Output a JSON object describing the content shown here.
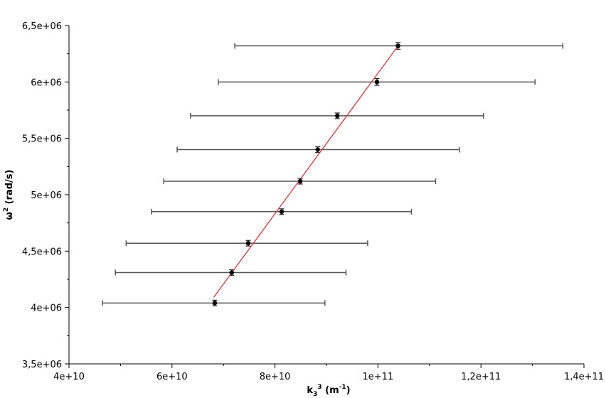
{
  "chart_data": {
    "type": "scatter",
    "title": "",
    "xlabel": {
      "base": "k",
      "sub": "3",
      "sup": "3",
      "unit_open": " (m",
      "unit_sup": "-1",
      "unit_close": ")"
    },
    "ylabel": {
      "base": "ω",
      "sup": "2",
      "rest": " (rad/s)"
    },
    "xlim": [
      40000000000,
      140000000000
    ],
    "ylim": [
      3500000,
      6500000
    ],
    "x_ticks": [
      {
        "value": 40000000000,
        "label": "4e+10"
      },
      {
        "value": 60000000000,
        "label": "6e+10"
      },
      {
        "value": 80000000000,
        "label": "8e+10"
      },
      {
        "value": 100000000000,
        "label": "1e+11"
      },
      {
        "value": 120000000000,
        "label": "1,2e+11"
      },
      {
        "value": 140000000000,
        "label": "1,4e+11"
      }
    ],
    "y_ticks": [
      {
        "value": 3500000,
        "label": "3,5e+06"
      },
      {
        "value": 4000000,
        "label": "4e+06"
      },
      {
        "value": 4500000,
        "label": "4,5e+06"
      },
      {
        "value": 5000000,
        "label": "5e+06"
      },
      {
        "value": 5500000,
        "label": "5,5e+06"
      },
      {
        "value": 6000000,
        "label": "6e+06"
      },
      {
        "value": 6500000,
        "label": "6,5e+06"
      }
    ],
    "grid": false,
    "points": [
      {
        "x": 68300000000,
        "y": 4040000,
        "x_err_low": 46500000000,
        "x_err_high": 89700000000,
        "y_err": 25000
      },
      {
        "x": 71600000000,
        "y": 4310000,
        "x_err_low": 49000000000,
        "x_err_high": 93800000000,
        "y_err": 25000
      },
      {
        "x": 74800000000,
        "y": 4570000,
        "x_err_low": 51100000000,
        "x_err_high": 98000000000,
        "y_err": 25000
      },
      {
        "x": 81300000000,
        "y": 4850000,
        "x_err_low": 56000000000,
        "x_err_high": 106500000000,
        "y_err": 25000
      },
      {
        "x": 84900000000,
        "y": 5120000,
        "x_err_low": 58400000000,
        "x_err_high": 111200000000,
        "y_err": 25000
      },
      {
        "x": 88300000000,
        "y": 5400000,
        "x_err_low": 61000000000,
        "x_err_high": 115800000000,
        "y_err": 25000
      },
      {
        "x": 92100000000,
        "y": 5700000,
        "x_err_low": 63600000000,
        "x_err_high": 120500000000,
        "y_err": 25000
      },
      {
        "x": 99800000000,
        "y": 6000000,
        "x_err_low": 69000000000,
        "x_err_high": 130500000000,
        "y_err": 30000
      },
      {
        "x": 103900000000,
        "y": 6320000,
        "x_err_low": 72200000000,
        "x_err_high": 135900000000,
        "y_err": 30000
      }
    ],
    "fit_line": {
      "x_start": 68100000000,
      "y_start": 4090000,
      "x_end": 103900000000,
      "y_end": 6320000
    },
    "colors": {
      "points": "#000000",
      "error_bars": "#555555",
      "fit_line": "#e8252a",
      "axis": "#000000"
    }
  }
}
